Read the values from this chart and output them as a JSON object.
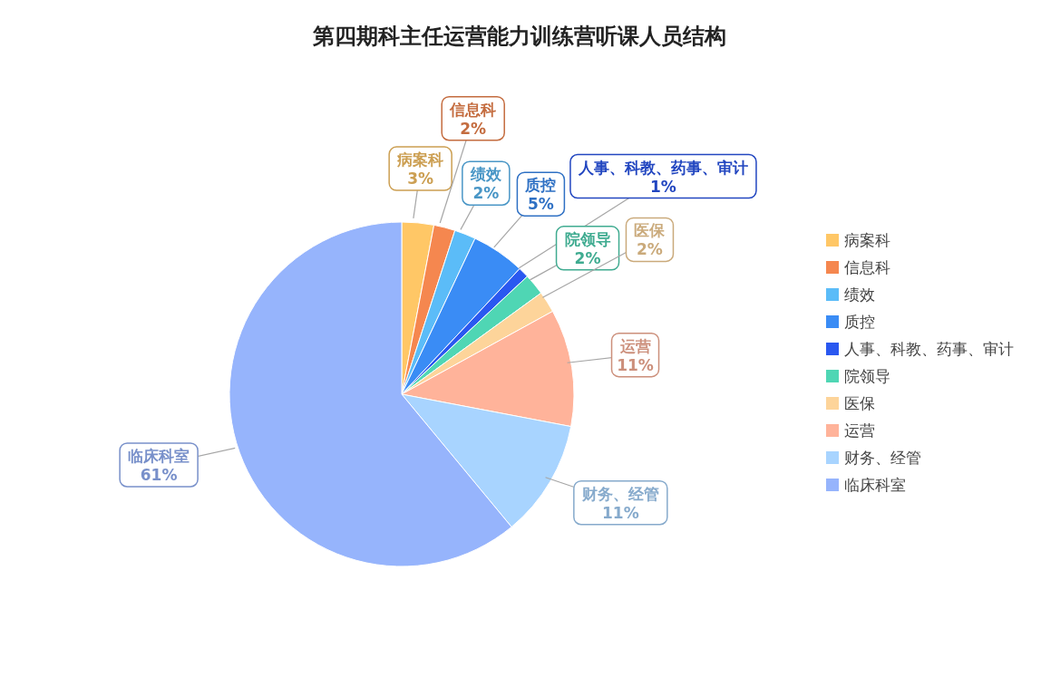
{
  "chart_data": {
    "type": "pie",
    "title": "第四期科主任运营能力训练营听课人员结构",
    "categories": [
      "病案科",
      "信息科",
      "绩效",
      "质控",
      "人事、科教、药事、审计",
      "院领导",
      "医保",
      "运营",
      "财务、经管",
      "临床科室"
    ],
    "values": [
      3,
      2,
      2,
      5,
      1,
      2,
      2,
      11,
      11,
      61
    ],
    "value_labels": [
      "3%",
      "2%",
      "2%",
      "5%",
      "1%",
      "2%",
      "2%",
      "11%",
      "11%",
      "61%"
    ],
    "colors": [
      "#ffc766",
      "#f5874f",
      "#5bbcf8",
      "#3a8cf5",
      "#2a58f0",
      "#4fd6b4",
      "#fdd49a",
      "#ffb39a",
      "#a8d4ff",
      "#96b4fc"
    ],
    "legend": "right"
  }
}
